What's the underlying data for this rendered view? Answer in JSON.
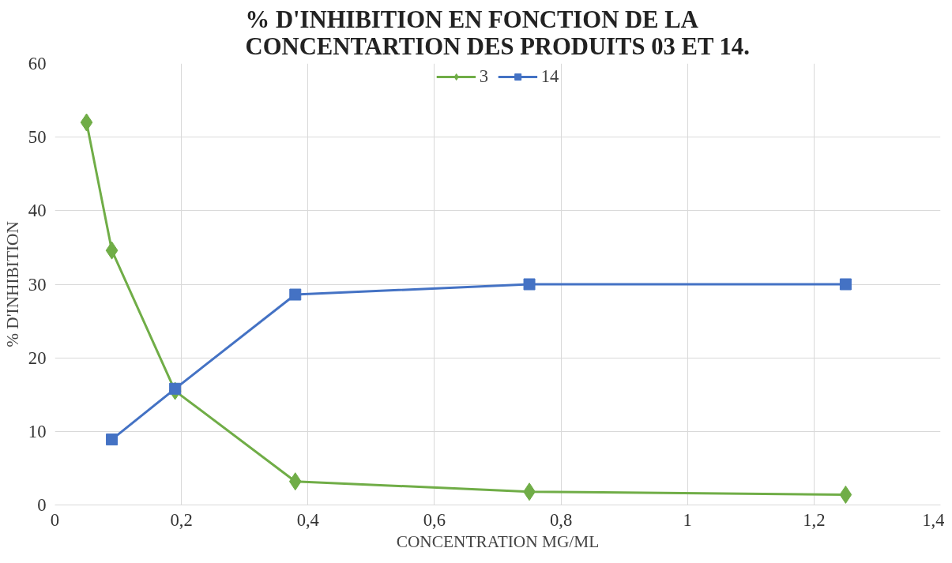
{
  "chart_data": {
    "type": "line",
    "title": "% D'INHIBITION EN FONCTION DE LA CONCENTARTION DES PRODUITS 03 ET 14.",
    "xlabel": "CONCENTRATION MG/ML",
    "ylabel": "% D'INHIBITION",
    "series": [
      {
        "name": "3",
        "color": "#70ad47",
        "marker": "diamond",
        "x": [
          0.05,
          0.09,
          0.19,
          0.38,
          0.75,
          1.25
        ],
        "values": [
          52,
          34.6,
          15.5,
          3.2,
          1.8,
          1.4
        ]
      },
      {
        "name": "14",
        "color": "#4472c4",
        "marker": "square",
        "x": [
          0.09,
          0.19,
          0.38,
          0.75,
          1.25
        ],
        "values": [
          8.9,
          15.8,
          28.6,
          30.0,
          30.0
        ]
      }
    ],
    "xlim": [
      0,
      1.4
    ],
    "xticks": [
      0,
      {
        "value": 0.2,
        "label": "0,2"
      },
      {
        "value": 0.4,
        "label": "0,4"
      },
      {
        "value": 0.6,
        "label": "0,6"
      },
      {
        "value": 0.8,
        "label": "0,8"
      },
      1,
      {
        "value": 1.2,
        "label": "1,2"
      },
      {
        "value": 1.4,
        "label": "1,4"
      }
    ],
    "ylim": [
      0,
      60
    ],
    "yticks": [
      0,
      10,
      20,
      30,
      40,
      50,
      60
    ],
    "grid": true,
    "legend": "top",
    "line_style": "solid"
  }
}
